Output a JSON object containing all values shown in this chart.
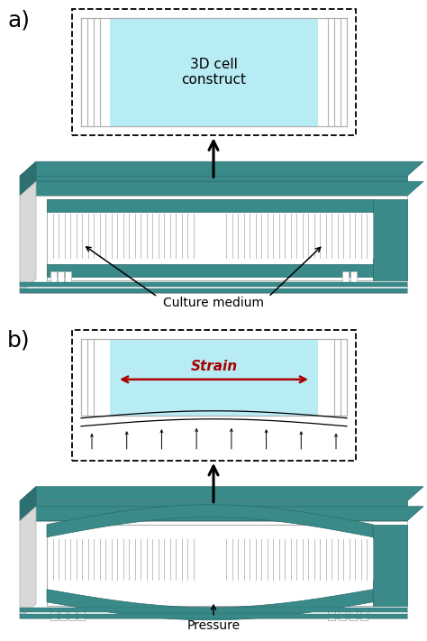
{
  "teal": "#3a8a8a",
  "teal_dark": "#2a6a6a",
  "teal_side": "#2d7070",
  "white": "#ffffff",
  "offwhite": "#f5f5f5",
  "gray_line": "#b0b0b0",
  "gray_mid": "#888888",
  "cyan_fill": "#b8ecf5",
  "dark_red": "#aa0000",
  "black": "#000000",
  "panel_a": "a)",
  "panel_b": "b)",
  "label_3d": "3D cell\nconstruct",
  "label_culture": "Culture medium",
  "label_strain": "Strain",
  "label_pressure": "Pressure"
}
